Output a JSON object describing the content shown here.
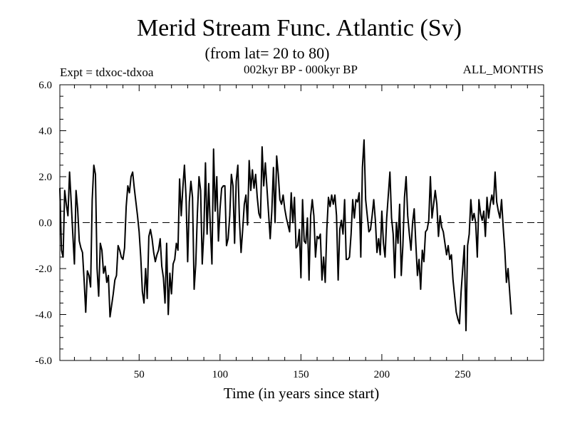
{
  "chart_data": {
    "type": "line",
    "title": "Merid Stream Func. Atlantic (Sv)",
    "subtitle": "(from lat= 20 to 80)",
    "annotations": {
      "left": "Expt = tdxoc-tdxoa",
      "center": "002kyr BP - 000kyr BP",
      "right": "ALL_MONTHS"
    },
    "xlabel": "Time (in years since start)",
    "ylabel": "",
    "xlim": [
      1,
      300
    ],
    "ylim": [
      -6.0,
      6.0
    ],
    "xticks": [
      50,
      100,
      150,
      200,
      250
    ],
    "xtick_labels": [
      "50",
      "100",
      "150",
      "200",
      "250"
    ],
    "yticks": [
      -6.0,
      -4.0,
      -2.0,
      0.0,
      2.0,
      4.0,
      6.0
    ],
    "ytick_labels": [
      "-6.0",
      "-4.0",
      "-2.0",
      "0.0",
      "2.0",
      "4.0",
      "6.0"
    ],
    "zero_line": "dashed",
    "grid": false,
    "series_color": "#000000",
    "series": [
      {
        "x_start": 1,
        "x_step": 1,
        "values": [
          1.5,
          -1.2,
          -1.5,
          1.4,
          0.8,
          0.3,
          2.2,
          0.9,
          -0.5,
          -1.8,
          1.4,
          0.6,
          -0.8,
          -1.1,
          -1.3,
          -2.5,
          -3.9,
          -2.1,
          -2.3,
          -2.8,
          1.0,
          2.5,
          2.1,
          -2.0,
          -3.2,
          -0.9,
          -1.2,
          -2.2,
          -1.9,
          -2.6,
          -2.3,
          -4.1,
          -3.6,
          -3.1,
          -2.5,
          -2.3,
          -1.0,
          -1.2,
          -1.5,
          -1.6,
          -1.1,
          0.7,
          1.6,
          1.3,
          2.0,
          2.2,
          1.5,
          0.9,
          0.3,
          -0.4,
          -1.5,
          -3.0,
          -3.5,
          -2.0,
          -3.3,
          -0.6,
          -0.3,
          -0.7,
          -1.3,
          -1.7,
          -1.4,
          -1.2,
          -0.7,
          -1.9,
          -2.4,
          -3.5,
          -0.9,
          -4.0,
          -2.2,
          -3.1,
          -1.8,
          -1.6,
          -0.9,
          -1.2,
          1.9,
          0.3,
          1.5,
          2.5,
          1.1,
          -1.7,
          0.9,
          1.8,
          1.1,
          -2.9,
          -1.8,
          0.4,
          2.0,
          1.4,
          -1.8,
          -0.4,
          2.6,
          -0.5,
          1.7,
          -0.2,
          -1.8,
          3.2,
          0.5,
          2.0,
          -0.8,
          0.6,
          1.5,
          1.6,
          1.6,
          -1.0,
          -0.7,
          0.3,
          2.1,
          1.6,
          -0.9,
          1.8,
          2.5,
          0.1,
          -1.3,
          -0.3,
          0.8,
          1.2,
          -0.1,
          2.7,
          1.4,
          2.3,
          1.5,
          2.1,
          1.1,
          0.4,
          0.2,
          3.3,
          1.6,
          2.6,
          1.5,
          0.4,
          -0.7,
          0.5,
          2.4,
          0.0,
          2.9,
          2.1,
          1.0,
          0.8,
          1.2,
          0.6,
          0.2,
          -0.1,
          -0.4,
          1.3,
          0.0,
          1.1,
          -1.1,
          -1.0,
          -0.3,
          -2.4,
          1.0,
          -0.8,
          -0.9,
          0.2,
          -2.5,
          0.3,
          1.0,
          0.3,
          -1.5,
          -0.6,
          -0.7,
          -0.5,
          -2.5,
          -1.5,
          -2.6,
          -0.3,
          1.1,
          0.7,
          1.2,
          0.8,
          1.2,
          0.3,
          -2.5,
          -0.3,
          0.1,
          -0.5,
          1.0,
          -1.6,
          -1.6,
          -1.5,
          -0.5,
          1.0,
          0.2,
          1.0,
          0.9,
          1.3,
          -1.5,
          2.4,
          3.6,
          1.0,
          0.3,
          -0.4,
          -0.3,
          0.3,
          1.0,
          0.1,
          -1.3,
          -0.7,
          -1.4,
          0.5,
          -0.9,
          -1.5,
          0.2,
          1.2,
          2.2,
          0.2,
          -0.5,
          -2.4,
          0.0,
          -0.9,
          0.8,
          -2.3,
          -1.0,
          1.1,
          2.0,
          0.3,
          -0.5,
          -1.2,
          0.0,
          0.6,
          -0.9,
          -2.3,
          -1.6,
          -2.9,
          -1.2,
          -1.7,
          -0.4,
          -0.3,
          0.1,
          2.0,
          0.2,
          0.8,
          1.4,
          0.8,
          -0.6,
          0.3,
          -0.2,
          -0.4,
          -0.9,
          -1.4,
          -1.0,
          -1.6,
          -1.4,
          -2.5,
          -3.2,
          -3.9,
          -4.2,
          -4.4,
          -3.0,
          -2.0,
          -1.0,
          -4.7,
          -1.0,
          -0.5,
          1.0,
          0.1,
          0.4,
          0.0,
          -1.5,
          1.0,
          0.4,
          0.1,
          0.5,
          -0.6,
          1.1,
          0.2,
          0.8,
          1.2,
          0.8,
          2.2,
          0.9,
          0.5,
          0.2,
          1.0,
          -0.2,
          -1.2,
          -2.6,
          -2.0,
          -3.0,
          -4.0
        ]
      }
    ]
  }
}
